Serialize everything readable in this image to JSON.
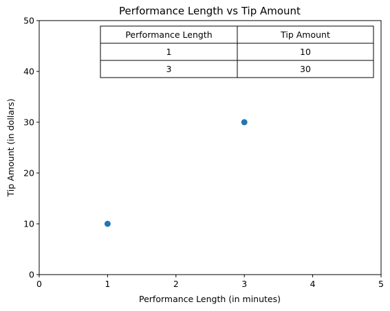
{
  "chart_data": {
    "type": "scatter",
    "title": "Performance Length vs Tip Amount",
    "xlabel": "Performance Length (in minutes)",
    "ylabel": "Tip Amount (in dollars)",
    "xlim": [
      0,
      5
    ],
    "ylim": [
      0,
      50
    ],
    "xticks": [
      "0",
      "1",
      "2",
      "3",
      "4",
      "5"
    ],
    "yticks": [
      "0",
      "10",
      "20",
      "30",
      "40",
      "50"
    ],
    "grid": false,
    "series": [
      {
        "x": [
          1,
          3
        ],
        "y": [
          10,
          30
        ],
        "color": "#1f77b4"
      }
    ],
    "table": {
      "headers": [
        "Performance Length",
        "Tip Amount"
      ],
      "rows": [
        [
          "1",
          "10"
        ],
        [
          "3",
          "30"
        ]
      ]
    }
  }
}
